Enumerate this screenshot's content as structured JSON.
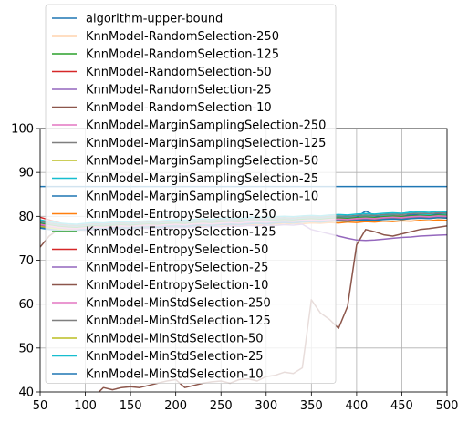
{
  "chart_data": {
    "type": "line",
    "xlim": [
      50,
      500
    ],
    "ylim": [
      40,
      100
    ],
    "xticks": [
      50,
      100,
      150,
      200,
      250,
      300,
      350,
      400,
      450,
      500
    ],
    "yticks": [
      40,
      50,
      60,
      70,
      80,
      90,
      100
    ],
    "grid": true,
    "legend_position": "upper left",
    "x": [
      50,
      60,
      70,
      80,
      90,
      100,
      110,
      120,
      130,
      140,
      150,
      160,
      170,
      180,
      190,
      200,
      210,
      220,
      230,
      240,
      250,
      260,
      270,
      280,
      290,
      300,
      310,
      320,
      330,
      340,
      350,
      360,
      370,
      380,
      390,
      400,
      410,
      420,
      430,
      440,
      450,
      460,
      470,
      480,
      490,
      500
    ],
    "series": [
      {
        "name": "algorithm-upper-bound",
        "color": "#1f77b4",
        "values": [
          86.8,
          86.8,
          86.8,
          86.8,
          86.8,
          86.8,
          86.8,
          86.8,
          86.8,
          86.8,
          86.8,
          86.8,
          86.8,
          86.8,
          86.8,
          86.8,
          86.8,
          86.8,
          86.8,
          86.8,
          86.8,
          86.8,
          86.8,
          86.8,
          86.8,
          86.8,
          86.8,
          86.8,
          86.8,
          86.8,
          86.8,
          86.8,
          86.8,
          86.8,
          86.8,
          86.8,
          86.8,
          86.8,
          86.8,
          86.8,
          86.8,
          86.8,
          86.8,
          86.8,
          86.8,
          86.8
        ]
      },
      {
        "name": "KnnModel-RandomSelection-250",
        "color": "#ff7f0e",
        "values": [
          78.0,
          77.6,
          77.2,
          77.0,
          76.8,
          76.9,
          77.1,
          77.0,
          77.2,
          77.3,
          77.4,
          77.3,
          77.5,
          77.6,
          77.5,
          77.7,
          77.6,
          77.8,
          77.7,
          77.9,
          78.0,
          77.9,
          78.1,
          78.0,
          78.2,
          78.1,
          78.3,
          78.2,
          78.4,
          78.3,
          78.5,
          78.4,
          78.6,
          78.5,
          78.7,
          78.6,
          78.8,
          78.7,
          78.9,
          78.8,
          79.0,
          78.9,
          79.1,
          79.0,
          79.2,
          79.1
        ]
      },
      {
        "name": "KnnModel-RandomSelection-125",
        "color": "#2ca02c",
        "values": [
          78.5,
          78.0,
          77.5,
          77.2,
          77.0,
          77.3,
          77.5,
          77.4,
          77.6,
          77.8,
          77.7,
          77.9,
          78.0,
          77.9,
          78.1,
          78.2,
          78.1,
          78.3,
          78.4,
          78.3,
          78.5,
          78.6,
          78.5,
          78.7,
          78.8,
          78.7,
          78.9,
          79.0,
          78.9,
          79.1,
          79.2,
          79.1,
          79.3,
          79.4,
          79.3,
          79.5,
          79.6,
          79.5,
          79.7,
          79.8,
          79.7,
          79.9,
          80.0,
          79.9,
          80.1,
          80.0
        ]
      },
      {
        "name": "KnnModel-RandomSelection-50",
        "color": "#d62728",
        "values": [
          79.8,
          79.2,
          78.6,
          78.0,
          77.5,
          77.2,
          77.4,
          77.3,
          77.5,
          77.6,
          77.4,
          77.7,
          77.8,
          77.6,
          77.9,
          78.0,
          77.8,
          78.1,
          78.2,
          78.0,
          78.3,
          78.4,
          78.2,
          78.5,
          78.6,
          78.4,
          78.7,
          78.8,
          78.6,
          78.9,
          79.0,
          78.8,
          79.1,
          79.2,
          79.0,
          79.3,
          79.4,
          79.2,
          79.5,
          79.6,
          79.4,
          79.7,
          79.8,
          79.6,
          79.9,
          80.0
        ]
      },
      {
        "name": "KnnModel-RandomSelection-25",
        "color": "#9467bd",
        "values": [
          78.2,
          77.8,
          77.4,
          77.2,
          77.0,
          76.8,
          76.9,
          77.1,
          77.0,
          77.2,
          77.1,
          77.3,
          77.2,
          77.4,
          77.3,
          77.5,
          77.4,
          77.6,
          77.5,
          77.7,
          77.6,
          77.8,
          77.7,
          77.9,
          77.8,
          78.0,
          77.9,
          78.1,
          78.0,
          78.2,
          77.0,
          76.5,
          76.0,
          75.5,
          75.0,
          74.6,
          74.5,
          74.6,
          74.8,
          75.0,
          75.2,
          75.3,
          75.5,
          75.6,
          75.7,
          75.8
        ]
      },
      {
        "name": "KnnModel-RandomSelection-10",
        "color": "#8c564b",
        "values": [
          73.0,
          75.5,
          77.0,
          77.5,
          77.8,
          78.0,
          78.2,
          78.1,
          78.3,
          78.2,
          78.4,
          78.3,
          78.5,
          78.4,
          78.6,
          78.5,
          78.7,
          78.6,
          78.8,
          78.7,
          78.9,
          78.8,
          79.0,
          78.9,
          79.1,
          79.0,
          79.2,
          79.1,
          79.3,
          79.2,
          79.4,
          79.3,
          79.5,
          79.4,
          79.6,
          79.5,
          79.7,
          79.6,
          79.8,
          79.7,
          79.9,
          79.8,
          80.0,
          79.9,
          80.1,
          80.0
        ]
      },
      {
        "name": "KnnModel-MarginSamplingSelection-250",
        "color": "#e377c2",
        "values": [
          78.3,
          77.9,
          77.6,
          77.4,
          77.3,
          77.5,
          77.7,
          77.6,
          77.8,
          77.9,
          77.8,
          78.0,
          78.1,
          78.0,
          78.2,
          78.3,
          78.2,
          78.4,
          78.5,
          78.4,
          78.6,
          78.7,
          78.6,
          78.8,
          78.9,
          78.8,
          79.0,
          79.1,
          79.0,
          79.2,
          79.3,
          79.2,
          79.4,
          79.5,
          79.4,
          79.6,
          79.7,
          79.6,
          79.8,
          79.9,
          79.8,
          80.0,
          80.1,
          80.0,
          80.2,
          80.1
        ]
      },
      {
        "name": "KnnModel-MarginSamplingSelection-125",
        "color": "#7f7f7f",
        "values": [
          78.6,
          78.2,
          77.9,
          77.7,
          77.6,
          77.8,
          78.0,
          77.9,
          78.1,
          78.2,
          78.1,
          78.3,
          78.4,
          78.3,
          78.5,
          78.6,
          78.5,
          78.7,
          78.8,
          78.7,
          78.9,
          79.0,
          78.9,
          79.1,
          79.2,
          79.1,
          79.3,
          79.4,
          79.3,
          79.5,
          79.6,
          79.5,
          79.7,
          79.8,
          79.7,
          79.9,
          80.0,
          79.9,
          80.1,
          80.2,
          80.1,
          80.3,
          80.4,
          80.3,
          80.5,
          80.4
        ]
      },
      {
        "name": "KnnModel-MarginSamplingSelection-50",
        "color": "#bcbd22",
        "values": [
          78.1,
          77.7,
          77.4,
          77.2,
          77.1,
          77.3,
          77.5,
          77.4,
          77.6,
          77.7,
          77.6,
          77.8,
          77.9,
          77.8,
          78.0,
          78.1,
          78.0,
          78.2,
          78.3,
          78.2,
          78.4,
          78.5,
          78.4,
          78.6,
          78.7,
          78.6,
          78.8,
          78.9,
          78.8,
          79.0,
          79.1,
          79.0,
          79.2,
          79.3,
          79.2,
          79.4,
          79.5,
          79.4,
          79.6,
          79.7,
          79.6,
          79.8,
          79.9,
          79.8,
          80.0,
          79.9
        ]
      },
      {
        "name": "KnnModel-MarginSamplingSelection-25",
        "color": "#17becf",
        "values": [
          78.8,
          78.4,
          78.1,
          77.9,
          77.8,
          78.0,
          78.2,
          78.1,
          78.3,
          78.4,
          78.3,
          78.5,
          78.6,
          78.5,
          78.7,
          78.8,
          78.7,
          78.9,
          79.0,
          78.9,
          79.1,
          79.2,
          79.1,
          79.3,
          79.4,
          79.3,
          79.5,
          79.6,
          79.5,
          79.7,
          79.8,
          79.7,
          79.9,
          80.0,
          79.9,
          80.1,
          80.2,
          80.1,
          80.3,
          80.4,
          80.6,
          81.0,
          80.5,
          80.4,
          80.6,
          80.5
        ]
      },
      {
        "name": "KnnModel-MarginSamplingSelection-10",
        "color": "#1f77b4",
        "values": [
          77.5,
          77.2,
          77.0,
          76.9,
          77.0,
          77.2,
          77.4,
          77.3,
          77.5,
          77.6,
          77.5,
          77.7,
          77.8,
          77.7,
          77.9,
          78.0,
          77.9,
          78.1,
          78.2,
          78.1,
          78.3,
          78.4,
          78.3,
          78.5,
          78.6,
          78.5,
          78.7,
          78.8,
          78.7,
          78.9,
          79.0,
          78.9,
          79.1,
          79.2,
          79.1,
          79.8,
          81.2,
          80.2,
          79.6,
          79.4,
          79.8,
          80.5,
          80.2,
          80.0,
          80.6,
          80.8
        ]
      },
      {
        "name": "KnnModel-EntropySelection-250",
        "color": "#ff7f0e",
        "values": [
          77.8,
          77.5,
          77.2,
          77.0,
          76.9,
          77.1,
          77.3,
          77.2,
          77.4,
          77.5,
          77.4,
          77.6,
          77.7,
          77.6,
          77.8,
          77.9,
          77.8,
          78.0,
          78.1,
          78.0,
          78.2,
          78.3,
          78.2,
          78.4,
          78.5,
          78.4,
          78.6,
          78.7,
          78.6,
          78.8,
          78.9,
          78.8,
          79.0,
          79.1,
          79.0,
          79.2,
          79.3,
          79.2,
          79.4,
          79.5,
          79.4,
          79.6,
          79.7,
          79.6,
          79.8,
          79.7
        ]
      },
      {
        "name": "KnnModel-EntropySelection-125",
        "color": "#2ca02c",
        "values": [
          78.4,
          78.0,
          77.7,
          77.5,
          77.4,
          77.6,
          77.8,
          77.7,
          77.9,
          78.0,
          77.9,
          78.1,
          78.2,
          78.1,
          78.3,
          78.4,
          78.3,
          78.5,
          78.6,
          78.5,
          78.7,
          78.8,
          78.7,
          78.9,
          79.0,
          78.9,
          79.1,
          79.2,
          79.1,
          79.3,
          79.4,
          79.3,
          79.5,
          79.6,
          79.5,
          79.7,
          79.8,
          79.7,
          79.9,
          80.0,
          79.9,
          80.1,
          80.2,
          80.1,
          80.3,
          80.2
        ]
      },
      {
        "name": "KnnModel-EntropySelection-50",
        "color": "#d62728",
        "values": [
          78.0,
          77.6,
          77.3,
          77.1,
          77.0,
          77.2,
          77.4,
          77.3,
          77.5,
          77.6,
          77.5,
          77.7,
          77.8,
          77.7,
          77.9,
          78.0,
          77.9,
          78.1,
          78.2,
          78.1,
          78.3,
          78.4,
          78.3,
          78.5,
          78.6,
          78.5,
          78.7,
          78.8,
          78.7,
          78.9,
          79.0,
          78.9,
          79.1,
          79.2,
          79.1,
          79.3,
          79.4,
          79.3,
          79.5,
          79.6,
          79.5,
          79.7,
          79.8,
          79.7,
          79.9,
          79.8
        ]
      },
      {
        "name": "KnnModel-EntropySelection-25",
        "color": "#9467bd",
        "values": [
          77.9,
          77.5,
          77.2,
          77.0,
          76.9,
          77.1,
          77.3,
          77.2,
          77.4,
          77.5,
          77.4,
          77.6,
          77.7,
          77.6,
          77.8,
          77.9,
          77.8,
          78.0,
          78.1,
          78.0,
          78.2,
          78.3,
          78.2,
          78.4,
          78.5,
          78.4,
          78.6,
          78.7,
          78.6,
          78.8,
          78.9,
          78.8,
          79.0,
          79.1,
          79.0,
          79.2,
          79.3,
          79.2,
          79.4,
          79.5,
          79.4,
          79.6,
          79.7,
          79.6,
          79.8,
          79.7
        ]
      },
      {
        "name": "KnnModel-EntropySelection-10",
        "color": "#8c564b",
        "values": [
          36.0,
          36.5,
          37.0,
          37.5,
          38.0,
          38.5,
          39.0,
          41.0,
          40.5,
          41.0,
          41.2,
          41.0,
          41.5,
          42.0,
          42.5,
          42.8,
          41.0,
          41.5,
          42.0,
          42.3,
          42.5,
          42.0,
          42.8,
          43.0,
          42.5,
          43.5,
          43.8,
          44.5,
          44.2,
          45.5,
          61.0,
          58.0,
          56.5,
          54.5,
          59.5,
          73.5,
          77.0,
          76.5,
          75.8,
          75.5,
          76.0,
          76.5,
          77.0,
          77.2,
          77.5,
          77.8
        ]
      },
      {
        "name": "KnnModel-MinStdSelection-250",
        "color": "#e377c2",
        "values": [
          78.2,
          77.8,
          77.5,
          77.3,
          77.2,
          77.4,
          77.6,
          77.5,
          77.7,
          77.8,
          77.7,
          77.9,
          78.0,
          77.9,
          78.1,
          78.2,
          78.1,
          78.3,
          78.4,
          78.3,
          78.5,
          78.6,
          78.5,
          78.7,
          78.8,
          78.7,
          78.9,
          79.0,
          78.9,
          79.1,
          79.2,
          79.1,
          79.3,
          79.4,
          79.3,
          79.5,
          79.6,
          79.5,
          79.7,
          79.8,
          79.7,
          79.9,
          80.0,
          79.9,
          80.1,
          80.0
        ]
      },
      {
        "name": "KnnModel-MinStdSelection-125",
        "color": "#7f7f7f",
        "values": [
          78.9,
          78.5,
          78.2,
          78.0,
          77.9,
          78.1,
          78.3,
          78.2,
          78.4,
          78.5,
          78.4,
          78.6,
          78.7,
          78.6,
          78.8,
          78.9,
          78.8,
          79.0,
          79.1,
          79.0,
          79.2,
          79.3,
          79.2,
          79.4,
          79.5,
          79.4,
          79.6,
          79.7,
          79.6,
          79.8,
          79.9,
          79.8,
          80.0,
          80.1,
          80.0,
          80.2,
          80.3,
          80.2,
          80.4,
          80.5,
          80.4,
          80.6,
          80.7,
          80.6,
          80.8,
          80.7
        ]
      },
      {
        "name": "KnnModel-MinStdSelection-50",
        "color": "#bcbd22",
        "values": [
          77.7,
          77.4,
          77.1,
          76.9,
          76.8,
          77.0,
          77.2,
          77.1,
          77.3,
          77.4,
          77.3,
          77.5,
          77.6,
          77.5,
          77.7,
          77.8,
          77.7,
          77.9,
          78.0,
          77.9,
          78.1,
          78.2,
          78.1,
          78.3,
          78.4,
          78.3,
          78.5,
          78.6,
          78.5,
          78.7,
          78.8,
          78.7,
          78.9,
          79.0,
          78.9,
          79.1,
          79.2,
          79.1,
          79.3,
          79.4,
          79.3,
          79.5,
          79.6,
          79.5,
          79.7,
          79.6
        ]
      },
      {
        "name": "KnnModel-MinStdSelection-25",
        "color": "#17becf",
        "values": [
          79.2,
          78.8,
          78.5,
          78.3,
          78.2,
          78.4,
          78.6,
          78.5,
          78.7,
          78.8,
          78.7,
          78.9,
          79.0,
          78.9,
          79.1,
          79.2,
          79.1,
          79.3,
          79.4,
          79.3,
          79.5,
          79.6,
          79.5,
          79.7,
          79.8,
          79.7,
          79.9,
          80.0,
          79.9,
          80.1,
          80.2,
          80.1,
          80.3,
          80.4,
          80.3,
          80.5,
          80.6,
          80.5,
          80.7,
          80.8,
          80.7,
          80.9,
          81.0,
          80.9,
          81.1,
          81.0
        ]
      },
      {
        "name": "KnnModel-MinStdSelection-10",
        "color": "#1f77b4",
        "values": [
          77.3,
          77.0,
          76.8,
          76.7,
          76.8,
          77.0,
          77.2,
          77.1,
          77.3,
          77.4,
          77.3,
          77.5,
          77.6,
          77.5,
          77.7,
          77.8,
          77.7,
          77.9,
          78.0,
          77.9,
          78.1,
          78.2,
          78.1,
          78.3,
          78.4,
          78.3,
          78.5,
          78.6,
          78.5,
          78.7,
          78.8,
          78.7,
          78.9,
          79.0,
          78.9,
          79.1,
          79.2,
          79.1,
          79.3,
          79.4,
          79.3,
          79.5,
          79.6,
          79.5,
          79.7,
          79.6
        ]
      }
    ]
  }
}
